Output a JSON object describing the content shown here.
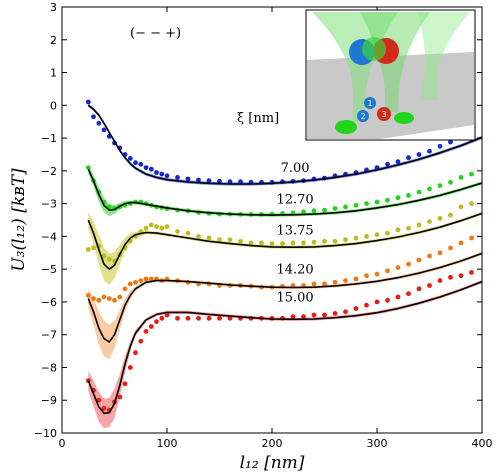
{
  "chart_data": {
    "type": "line",
    "xlabel": "l₁₂ [nm]",
    "ylabel": "U₃(l₁₂)  [kʙT]",
    "xlim": [
      0,
      400
    ],
    "ylim": [
      -10,
      3
    ],
    "xticks": [
      "0",
      "100",
      "200",
      "300",
      "400"
    ],
    "yticks": [
      "3",
      "2",
      "1",
      "0",
      "−1",
      "−2",
      "−3",
      "−4",
      "−5",
      "−6",
      "−7",
      "−8",
      "−9",
      "−10"
    ],
    "annotations": {
      "config": "(− − +)",
      "xi_header": "ξ [nm]"
    },
    "series": [
      {
        "name": "7.00",
        "color": "#1428d2",
        "band_color": "#1428d2",
        "theory_x": [
          25,
          30,
          35,
          40,
          45,
          50,
          55,
          60,
          65,
          70,
          80,
          90,
          100,
          120,
          140,
          160,
          180,
          200,
          220,
          240,
          260,
          280,
          300,
          320,
          340,
          360,
          380,
          400
        ],
        "theory_y": [
          0.0,
          -0.12,
          -0.3,
          -0.55,
          -0.83,
          -1.1,
          -1.38,
          -1.6,
          -1.78,
          -1.92,
          -2.1,
          -2.2,
          -2.27,
          -2.34,
          -2.38,
          -2.4,
          -2.4,
          -2.38,
          -2.34,
          -2.28,
          -2.2,
          -2.1,
          -1.97,
          -1.82,
          -1.65,
          -1.45,
          -1.23,
          -0.98
        ],
        "band_halfwidth": [
          0.05,
          0.05,
          0.05,
          0.05,
          0.05,
          0.05,
          0.05,
          0.05,
          0.05,
          0.05,
          0.05,
          0.05,
          0.05,
          0.05,
          0.05,
          0.05,
          0.05,
          0.05,
          0.05,
          0.05,
          0.05,
          0.05,
          0.05,
          0.05,
          0.05,
          0.05,
          0.05,
          0.05
        ],
        "sim_x": [
          25,
          30,
          35,
          40,
          45,
          50,
          55,
          60,
          65,
          70,
          75,
          80,
          85,
          90,
          95,
          100,
          110,
          120,
          130,
          140,
          150,
          160,
          170,
          180,
          190,
          200,
          210,
          220,
          230,
          240,
          250,
          260,
          270,
          280,
          290,
          300,
          310,
          320,
          330,
          340,
          350,
          360,
          370,
          380,
          390
        ],
        "sim_y": [
          0.1,
          -0.35,
          -0.55,
          -0.75,
          -0.95,
          -1.15,
          -1.3,
          -1.5,
          -1.62,
          -1.75,
          -1.8,
          -1.9,
          -1.95,
          -2.05,
          -2.1,
          -2.15,
          -2.2,
          -2.25,
          -2.28,
          -2.3,
          -2.32,
          -2.33,
          -2.33,
          -2.35,
          -2.35,
          -2.35,
          -2.33,
          -2.32,
          -2.3,
          -2.25,
          -2.22,
          -2.15,
          -2.1,
          -2.05,
          -1.97,
          -1.9,
          -1.8,
          -1.72,
          -1.6,
          -1.5,
          -1.4,
          -1.25,
          -1.12,
          -1.0,
          -0.85
        ]
      },
      {
        "name": "12.70",
        "color": "#22d41c",
        "band_color": "#22d41c",
        "theory_x": [
          25,
          30,
          35,
          40,
          45,
          50,
          55,
          60,
          65,
          70,
          80,
          90,
          100,
          120,
          140,
          160,
          180,
          200,
          220,
          240,
          260,
          280,
          300,
          320,
          340,
          360,
          380,
          400
        ],
        "theory_y": [
          -1.95,
          -2.3,
          -2.72,
          -3.05,
          -3.2,
          -3.18,
          -3.08,
          -3.0,
          -2.97,
          -2.97,
          -3.02,
          -3.08,
          -3.13,
          -3.22,
          -3.28,
          -3.32,
          -3.34,
          -3.35,
          -3.34,
          -3.32,
          -3.28,
          -3.22,
          -3.13,
          -3.03,
          -2.9,
          -2.75,
          -2.57,
          -2.37
        ],
        "band_halfwidth": [
          0.12,
          0.17,
          0.22,
          0.22,
          0.18,
          0.13,
          0.1,
          0.08,
          0.06,
          0.05,
          0.05,
          0.05,
          0.05,
          0.05,
          0.05,
          0.05,
          0.05,
          0.05,
          0.05,
          0.05,
          0.05,
          0.05,
          0.05,
          0.05,
          0.05,
          0.05,
          0.05,
          0.05
        ],
        "sim_x": [
          25,
          30,
          35,
          40,
          45,
          50,
          55,
          60,
          65,
          70,
          75,
          80,
          85,
          90,
          95,
          100,
          110,
          120,
          130,
          140,
          150,
          160,
          170,
          180,
          190,
          200,
          210,
          220,
          230,
          240,
          250,
          260,
          270,
          280,
          290,
          300,
          310,
          320,
          330,
          340,
          350,
          360,
          370,
          380,
          390
        ],
        "sim_y": [
          -1.9,
          -2.3,
          -2.65,
          -2.95,
          -3.1,
          -3.15,
          -3.1,
          -3.05,
          -3.0,
          -2.95,
          -2.95,
          -3.0,
          -3.05,
          -3.1,
          -3.12,
          -3.15,
          -3.2,
          -3.22,
          -3.27,
          -3.3,
          -3.32,
          -3.32,
          -3.33,
          -3.33,
          -3.33,
          -3.32,
          -3.3,
          -3.28,
          -3.25,
          -3.22,
          -3.2,
          -3.15,
          -3.1,
          -3.05,
          -3.0,
          -2.95,
          -2.9,
          -2.82,
          -2.75,
          -2.65,
          -2.55,
          -2.45,
          -2.35,
          -2.2,
          -2.1
        ]
      },
      {
        "name": "13.75",
        "color": "#bcbc1e",
        "band_color": "#c8c828",
        "theory_x": [
          25,
          30,
          35,
          40,
          45,
          50,
          55,
          60,
          65,
          70,
          80,
          90,
          100,
          120,
          140,
          160,
          180,
          200,
          220,
          240,
          260,
          280,
          300,
          320,
          340,
          360,
          380,
          400
        ],
        "theory_y": [
          -3.5,
          -3.9,
          -4.4,
          -4.85,
          -5.0,
          -4.88,
          -4.55,
          -4.25,
          -4.05,
          -3.95,
          -3.88,
          -3.9,
          -3.95,
          -4.05,
          -4.15,
          -4.22,
          -4.28,
          -4.32,
          -4.33,
          -4.32,
          -4.28,
          -4.22,
          -4.13,
          -4.02,
          -3.88,
          -3.72,
          -3.52,
          -3.3
        ],
        "band_halfwidth": [
          0.25,
          0.35,
          0.45,
          0.5,
          0.48,
          0.4,
          0.3,
          0.22,
          0.15,
          0.1,
          0.06,
          0.05,
          0.05,
          0.05,
          0.05,
          0.05,
          0.05,
          0.05,
          0.05,
          0.05,
          0.05,
          0.05,
          0.05,
          0.05,
          0.05,
          0.05,
          0.05,
          0.05
        ],
        "sim_x": [
          25,
          30,
          35,
          40,
          45,
          50,
          55,
          60,
          65,
          70,
          75,
          80,
          85,
          90,
          95,
          100,
          110,
          120,
          130,
          140,
          150,
          160,
          170,
          180,
          190,
          200,
          210,
          220,
          230,
          240,
          250,
          260,
          270,
          280,
          290,
          300,
          310,
          320,
          330,
          340,
          350,
          360,
          370,
          380,
          390
        ],
        "sim_y": [
          -4.4,
          -4.35,
          -4.3,
          -4.6,
          -4.7,
          -4.75,
          -4.55,
          -4.35,
          -4.15,
          -4.0,
          -3.85,
          -3.75,
          -3.65,
          -3.7,
          -3.75,
          -3.7,
          -3.85,
          -3.9,
          -4.0,
          -4.05,
          -4.1,
          -4.1,
          -4.15,
          -4.2,
          -4.2,
          -4.22,
          -4.22,
          -4.2,
          -4.2,
          -4.18,
          -4.15,
          -4.15,
          -4.1,
          -4.05,
          -4.0,
          -3.95,
          -3.9,
          -3.8,
          -3.75,
          -3.65,
          -3.55,
          -3.45,
          -3.35,
          -3.1,
          -3.0
        ]
      },
      {
        "name": "14.20",
        "color": "#ee7814",
        "band_color": "#f5a05a",
        "theory_x": [
          25,
          30,
          35,
          40,
          45,
          50,
          55,
          60,
          65,
          70,
          80,
          90,
          100,
          120,
          140,
          160,
          180,
          200,
          220,
          240,
          260,
          280,
          300,
          320,
          340,
          360,
          380,
          400
        ],
        "theory_y": [
          -5.9,
          -6.3,
          -6.8,
          -7.12,
          -7.22,
          -7.0,
          -6.55,
          -6.1,
          -5.8,
          -5.6,
          -5.4,
          -5.35,
          -5.35,
          -5.38,
          -5.43,
          -5.48,
          -5.52,
          -5.55,
          -5.56,
          -5.55,
          -5.51,
          -5.45,
          -5.37,
          -5.26,
          -5.12,
          -4.95,
          -4.75,
          -4.52
        ],
        "band_halfwidth": [
          0.3,
          0.4,
          0.5,
          0.55,
          0.52,
          0.42,
          0.3,
          0.2,
          0.13,
          0.08,
          0.05,
          0.05,
          0.05,
          0.05,
          0.05,
          0.05,
          0.05,
          0.05,
          0.05,
          0.05,
          0.05,
          0.05,
          0.05,
          0.05,
          0.05,
          0.05,
          0.05,
          0.05
        ],
        "sim_x": [
          25,
          30,
          35,
          40,
          45,
          50,
          55,
          60,
          65,
          70,
          75,
          80,
          85,
          90,
          95,
          100,
          110,
          120,
          130,
          140,
          150,
          160,
          170,
          180,
          190,
          200,
          210,
          220,
          230,
          240,
          250,
          260,
          270,
          280,
          290,
          300,
          310,
          320,
          330,
          340,
          350,
          360,
          370,
          380,
          390
        ],
        "sim_y": [
          -5.8,
          -5.9,
          -5.95,
          -5.85,
          -5.9,
          -5.95,
          -5.85,
          -5.6,
          -5.45,
          -5.4,
          -5.35,
          -5.3,
          -5.3,
          -5.3,
          -5.35,
          -5.3,
          -5.35,
          -5.4,
          -5.45,
          -5.45,
          -5.5,
          -5.5,
          -5.5,
          -5.52,
          -5.55,
          -5.55,
          -5.52,
          -5.5,
          -5.5,
          -5.45,
          -5.45,
          -5.4,
          -5.35,
          -5.3,
          -5.2,
          -5.15,
          -5.05,
          -4.95,
          -4.85,
          -4.72,
          -4.6,
          -4.5,
          -4.35,
          -4.2,
          -4.05
        ]
      },
      {
        "name": "15.00",
        "color": "#e81c14",
        "band_color": "#f05a5a",
        "theory_x": [
          25,
          30,
          35,
          40,
          45,
          50,
          55,
          60,
          65,
          70,
          80,
          90,
          100,
          120,
          140,
          160,
          180,
          200,
          220,
          240,
          260,
          280,
          300,
          320,
          340,
          360,
          380,
          400
        ],
        "theory_y": [
          -8.4,
          -8.8,
          -9.2,
          -9.4,
          -9.38,
          -9.1,
          -8.55,
          -7.9,
          -7.35,
          -6.95,
          -6.55,
          -6.38,
          -6.32,
          -6.32,
          -6.38,
          -6.43,
          -6.48,
          -6.52,
          -6.53,
          -6.52,
          -6.48,
          -6.42,
          -6.33,
          -6.2,
          -6.04,
          -5.85,
          -5.63,
          -5.38
        ],
        "band_halfwidth": [
          0.3,
          0.4,
          0.45,
          0.45,
          0.45,
          0.45,
          0.35,
          0.25,
          0.15,
          0.1,
          0.05,
          0.05,
          0.05,
          0.05,
          0.05,
          0.05,
          0.05,
          0.05,
          0.05,
          0.05,
          0.05,
          0.05,
          0.05,
          0.05,
          0.05,
          0.05,
          0.05,
          0.05
        ],
        "sim_x": [
          25,
          30,
          35,
          40,
          45,
          50,
          55,
          60,
          65,
          70,
          75,
          80,
          85,
          90,
          95,
          100,
          110,
          120,
          130,
          140,
          150,
          160,
          170,
          180,
          190,
          200,
          210,
          220,
          230,
          240,
          250,
          260,
          270,
          280,
          290,
          300,
          310,
          320,
          330,
          340,
          350,
          360,
          370,
          380,
          390
        ],
        "sim_y": [
          -8.4,
          -8.7,
          -9.0,
          -9.25,
          -9.3,
          -9.05,
          -8.9,
          -8.5,
          -8.0,
          -7.55,
          -7.2,
          -6.9,
          -6.75,
          -6.6,
          -6.5,
          -6.4,
          -6.5,
          -6.5,
          -6.5,
          -6.5,
          -6.5,
          -6.5,
          -6.5,
          -6.5,
          -6.5,
          -6.5,
          -6.5,
          -6.45,
          -6.45,
          -6.4,
          -6.4,
          -6.35,
          -6.3,
          -6.2,
          -6.1,
          -6.0,
          -5.95,
          -5.85,
          -5.75,
          -5.6,
          -5.5,
          -5.35,
          -5.25,
          -5.2,
          -5.1
        ]
      }
    ],
    "curve_labels": [
      {
        "text": "7.00",
        "x": 222,
        "y": -2.1
      },
      {
        "text": "12.70",
        "x": 222,
        "y": -3.05
      },
      {
        "text": "13.75",
        "x": 222,
        "y": -4.0
      },
      {
        "text": "14.20",
        "x": 222,
        "y": -5.2
      },
      {
        "text": "15.00",
        "x": 222,
        "y": -6.05
      }
    ],
    "inset": {
      "markers": [
        "1",
        "2",
        "3"
      ]
    }
  }
}
